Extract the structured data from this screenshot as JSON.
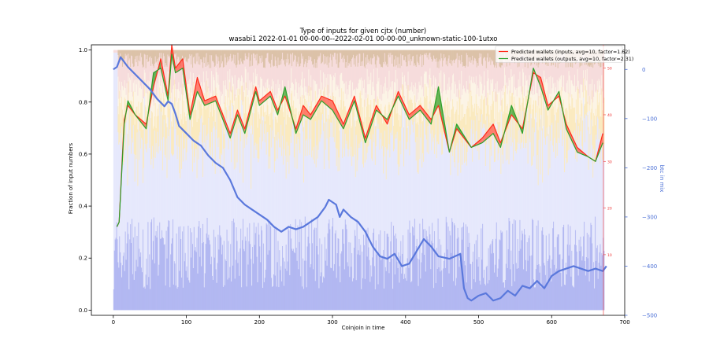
{
  "chart_data": {
    "type": "area",
    "title": "Type of inputs for given cjtx (number)",
    "subtitle": "wasabi1 2022-01-01 00-00-00--2022-02-01 00-00-00_unknown-static-100-1utxo",
    "xlabel": "Coinjoin in time",
    "ylabel": "Fraction of input numbers",
    "y2label": "btc in mix",
    "xlim": [
      -30,
      700
    ],
    "ylim": [
      -0.02,
      1.02
    ],
    "y2lim": [
      -500,
      50
    ],
    "wallets_axis_lim": [
      -3,
      55
    ],
    "x_ticks": [
      0,
      100,
      200,
      300,
      400,
      500,
      600,
      700
    ],
    "y_ticks": [
      0.0,
      0.2,
      0.4,
      0.6,
      0.8,
      1.0
    ],
    "y2_ticks": [
      0,
      -100,
      -200,
      -300,
      -400,
      -500
    ],
    "wallets_ticks": [
      10,
      20,
      30,
      40,
      50
    ],
    "legend_position": "top-right",
    "colors": {
      "inputs_line": "#ff2a1a",
      "outputs_line": "#2ca02c",
      "diff_up": "#ff5a4a",
      "diff_down": "#3aa02a",
      "btc_line": "#5a78dc",
      "y2_axis": "#4a6fd6",
      "wallets_axis": "#ee3333",
      "band_blue_dark": "#aab0f0",
      "band_blue_light": "#e4e6fb",
      "band_yellow": "#fae8b8",
      "band_cream": "#fbf3e4",
      "band_pink": "#f6d8d8",
      "band_tan": "#d8bca0"
    },
    "series": [
      {
        "name": "Predicted wallets (inputs, avg=10, factor=1.62)",
        "axis": "wallets",
        "x": [
          5,
          8,
          12,
          15,
          20,
          30,
          45,
          55,
          65,
          75,
          80,
          85,
          95,
          105,
          115,
          125,
          140,
          155,
          160,
          170,
          180,
          195,
          200,
          215,
          225,
          235,
          250,
          260,
          270,
          285,
          300,
          315,
          330,
          345,
          360,
          375,
          390,
          405,
          420,
          435,
          445,
          460,
          470,
          490,
          505,
          520,
          530,
          545,
          560,
          575,
          585,
          595,
          610,
          620,
          635,
          650,
          660,
          670
        ],
        "y": [
          16,
          17,
          30,
          39,
          42,
          40,
          38,
          46,
          52,
          44,
          55,
          50,
          52,
          40,
          48,
          43,
          44,
          38,
          36,
          41,
          37,
          46,
          43,
          45,
          41,
          44,
          37,
          42,
          40,
          44,
          43,
          38,
          44,
          35,
          42,
          38,
          45,
          40,
          42,
          39,
          42,
          32,
          37,
          33,
          35,
          38,
          34,
          40,
          37,
          49,
          48,
          42,
          44,
          38,
          33,
          31,
          30,
          36
        ]
      },
      {
        "name": "Predicted wallets (outputs, avg=10, factor=2.31)",
        "axis": "wallets",
        "x": [
          5,
          8,
          12,
          15,
          20,
          30,
          45,
          55,
          65,
          75,
          80,
          85,
          95,
          105,
          115,
          125,
          140,
          155,
          160,
          170,
          180,
          195,
          200,
          215,
          225,
          235,
          250,
          260,
          270,
          285,
          300,
          315,
          330,
          345,
          360,
          375,
          390,
          405,
          420,
          435,
          445,
          460,
          470,
          490,
          505,
          520,
          530,
          545,
          560,
          575,
          585,
          595,
          610,
          620,
          635,
          650,
          660,
          670
        ],
        "y": [
          16,
          17,
          29,
          38,
          43,
          40,
          37,
          49,
          50,
          43,
          53,
          49,
          50,
          39,
          45,
          42,
          43,
          37,
          35,
          40,
          36,
          45,
          42,
          44,
          40,
          46,
          36,
          40,
          39,
          43,
          41,
          37,
          43,
          34,
          41,
          39,
          44,
          39,
          41,
          38,
          46,
          32,
          38,
          33,
          34,
          36,
          33,
          42,
          36,
          50,
          46,
          41,
          45,
          37,
          32,
          31,
          30,
          34
        ]
      },
      {
        "name": "btc in mix",
        "axis": "y2",
        "x": [
          0,
          5,
          10,
          15,
          20,
          30,
          40,
          50,
          60,
          70,
          75,
          80,
          85,
          90,
          100,
          110,
          120,
          130,
          140,
          150,
          160,
          170,
          180,
          190,
          200,
          210,
          220,
          230,
          240,
          250,
          260,
          270,
          280,
          290,
          295,
          300,
          305,
          310,
          315,
          325,
          335,
          345,
          355,
          365,
          375,
          385,
          395,
          405,
          415,
          425,
          435,
          445,
          460,
          475,
          480,
          485,
          490,
          500,
          510,
          520,
          530,
          540,
          550,
          560,
          570,
          580,
          590,
          600,
          610,
          620,
          630,
          640,
          650,
          660,
          670,
          675
        ],
        "y": [
          0,
          5,
          25,
          15,
          5,
          -10,
          -25,
          -40,
          -60,
          -75,
          -65,
          -70,
          -90,
          -115,
          -130,
          -145,
          -155,
          -175,
          -190,
          -200,
          -225,
          -260,
          -275,
          -285,
          -295,
          -305,
          -320,
          -330,
          -320,
          -325,
          -320,
          -310,
          -300,
          -280,
          -265,
          -270,
          -275,
          -300,
          -285,
          -300,
          -310,
          -330,
          -360,
          -380,
          -385,
          -375,
          -400,
          -395,
          -370,
          -345,
          -360,
          -380,
          -385,
          -375,
          -445,
          -465,
          -470,
          -460,
          -455,
          -470,
          -465,
          -450,
          -460,
          -440,
          -445,
          -430,
          -445,
          -420,
          -410,
          -405,
          -400,
          -405,
          -410,
          -405,
          -410,
          -400
        ]
      }
    ],
    "stacked_fractions": {
      "description_bins": "per-coinjoin stacked fractions: blue dark, blue light, yellow, cream, pink, tan (bottom to top)",
      "mean": [
        0.22,
        0.43,
        0.13,
        0.08,
        0.1,
        0.04
      ]
    }
  }
}
